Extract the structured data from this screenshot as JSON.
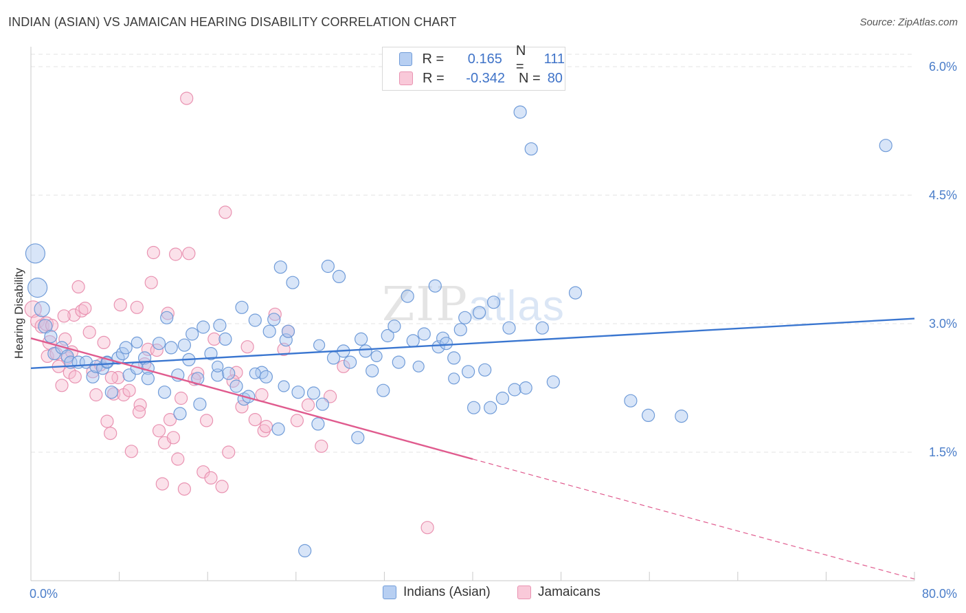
{
  "header": {
    "title": "INDIAN (ASIAN) VS JAMAICAN HEARING DISABILITY CORRELATION CHART",
    "source": "Source: ZipAtlas.com"
  },
  "watermark": {
    "zip": "ZIP",
    "atlas": "atlas"
  },
  "legend_top": {
    "rows": [
      {
        "r_label": "R =",
        "r_value": "0.165",
        "n_label": "N =",
        "n_value": "111"
      },
      {
        "r_label": "R =",
        "r_value": "-0.342",
        "n_label": "N =",
        "n_value": "80"
      }
    ]
  },
  "legend_bottom": {
    "items": [
      {
        "label": "Indians (Asian)"
      },
      {
        "label": "Jamaicans"
      }
    ]
  },
  "colors": {
    "blue_fill": "#a9c6ef",
    "blue_stroke": "#6f9bd8",
    "blue_line": "#3a76d0",
    "pink_fill": "#f6bcd0",
    "pink_stroke": "#e992b1",
    "pink_line": "#e05b8e",
    "grid": "#e3e3e3",
    "tick_text": "#4a7dc9"
  },
  "chart_data": {
    "type": "scatter",
    "title": "INDIAN (ASIAN) VS JAMAICAN HEARING DISABILITY CORRELATION CHART",
    "xlabel": "",
    "ylabel": "Hearing Disability",
    "xlim": [
      0,
      80
    ],
    "ylim": [
      0,
      6.3
    ],
    "x_tick_labels": [
      "0.0%",
      "80.0%"
    ],
    "y_ticks": [
      1.5,
      3.0,
      4.5,
      6.0
    ],
    "y_tick_labels": [
      "1.5%",
      "3.0%",
      "4.5%",
      "6.0%"
    ],
    "grid": "horizontal dashed",
    "legend_position": "top-center",
    "series": [
      {
        "name": "Indians (Asian)",
        "r": 0.165,
        "n": 111,
        "trend": {
          "x": [
            0,
            80
          ],
          "y": [
            2.48,
            3.06
          ]
        },
        "points": [
          [
            0.4,
            3.82,
            14
          ],
          [
            0.6,
            3.42,
            14
          ],
          [
            1.0,
            3.17,
            11
          ],
          [
            1.3,
            2.97,
            10
          ],
          [
            1.8,
            2.85,
            9
          ],
          [
            2.1,
            2.65,
            9
          ],
          [
            2.8,
            2.72,
            9
          ],
          [
            3.3,
            2.62,
            9
          ],
          [
            3.6,
            2.55,
            9
          ],
          [
            4.3,
            2.55,
            9
          ],
          [
            5.0,
            2.55,
            9
          ],
          [
            5.6,
            2.38,
            9
          ],
          [
            5.9,
            2.5,
            9
          ],
          [
            6.5,
            2.48,
            9
          ],
          [
            6.9,
            2.55,
            9
          ],
          [
            7.3,
            2.2,
            9
          ],
          [
            7.9,
            2.6,
            9
          ],
          [
            8.3,
            2.65,
            9
          ],
          [
            8.6,
            2.72,
            9
          ],
          [
            8.9,
            2.4,
            9
          ],
          [
            9.6,
            2.48,
            9
          ],
          [
            10.3,
            2.6,
            9
          ],
          [
            10.6,
            2.48,
            9
          ],
          [
            10.6,
            2.36,
            9
          ],
          [
            11.6,
            2.77,
            9
          ],
          [
            12.1,
            2.2,
            9
          ],
          [
            12.3,
            3.07,
            9
          ],
          [
            12.7,
            2.72,
            9
          ],
          [
            13.3,
            2.4,
            9
          ],
          [
            13.5,
            1.95,
            9
          ],
          [
            13.9,
            2.75,
            9
          ],
          [
            14.3,
            2.58,
            9
          ],
          [
            14.6,
            2.88,
            9
          ],
          [
            15.1,
            2.36,
            9
          ],
          [
            15.3,
            2.06,
            9
          ],
          [
            15.6,
            2.96,
            9
          ],
          [
            16.3,
            2.65,
            9
          ],
          [
            16.9,
            2.4,
            9
          ],
          [
            17.1,
            2.98,
            9
          ],
          [
            17.6,
            2.82,
            9
          ],
          [
            17.9,
            2.42,
            9
          ],
          [
            18.6,
            2.27,
            9
          ],
          [
            19.1,
            3.19,
            9
          ],
          [
            19.3,
            2.12,
            9
          ],
          [
            19.7,
            2.15,
            9
          ],
          [
            20.3,
            3.04,
            9
          ],
          [
            20.9,
            2.43,
            9
          ],
          [
            21.3,
            2.38,
            9
          ],
          [
            21.6,
            2.91,
            9
          ],
          [
            22.0,
            3.05,
            9
          ],
          [
            22.4,
            1.77,
            9
          ],
          [
            22.6,
            3.66,
            9
          ],
          [
            23.1,
            2.81,
            9
          ],
          [
            23.3,
            2.91,
            9
          ],
          [
            23.7,
            3.48,
            9
          ],
          [
            24.2,
            2.2,
            9
          ],
          [
            24.8,
            0.35,
            9
          ],
          [
            25.6,
            2.19,
            9
          ],
          [
            26.0,
            1.83,
            9
          ],
          [
            26.4,
            2.06,
            9
          ],
          [
            26.9,
            3.67,
            9
          ],
          [
            27.4,
            2.6,
            9
          ],
          [
            27.9,
            3.55,
            9
          ],
          [
            28.3,
            2.68,
            9
          ],
          [
            28.9,
            2.55,
            9
          ],
          [
            29.6,
            1.67,
            9
          ],
          [
            29.9,
            2.82,
            9
          ],
          [
            30.3,
            2.68,
            9
          ],
          [
            30.9,
            2.45,
            9
          ],
          [
            31.9,
            2.22,
            9
          ],
          [
            32.3,
            2.86,
            9
          ],
          [
            32.9,
            2.97,
            9
          ],
          [
            33.3,
            2.55,
            9
          ],
          [
            34.1,
            3.32,
            9
          ],
          [
            34.6,
            2.8,
            9
          ],
          [
            35.6,
            2.88,
            9
          ],
          [
            36.6,
            3.44,
            9
          ],
          [
            36.9,
            2.73,
            9
          ],
          [
            37.3,
            2.83,
            9
          ],
          [
            37.6,
            2.77,
            9
          ],
          [
            38.3,
            2.6,
            9
          ],
          [
            38.9,
            2.93,
            9
          ],
          [
            39.3,
            3.07,
            9
          ],
          [
            39.6,
            2.44,
            9
          ],
          [
            40.1,
            2.02,
            9
          ],
          [
            40.6,
            3.13,
            9
          ],
          [
            41.1,
            2.46,
            9
          ],
          [
            41.6,
            2.02,
            9
          ],
          [
            41.9,
            3.25,
            9
          ],
          [
            42.7,
            2.13,
            9
          ],
          [
            43.3,
            2.95,
            9
          ],
          [
            43.8,
            2.23,
            9
          ],
          [
            44.3,
            5.47,
            9
          ],
          [
            45.3,
            5.04,
            9
          ],
          [
            44.8,
            2.25,
            9
          ],
          [
            46.3,
            2.95,
            9
          ],
          [
            47.3,
            2.32,
            9
          ],
          [
            49.3,
            3.36,
            9
          ],
          [
            54.3,
            2.1,
            9
          ],
          [
            55.9,
            1.93,
            9
          ],
          [
            58.9,
            1.92,
            9
          ],
          [
            77.4,
            5.08,
            9
          ],
          [
            6.9,
            2.55,
            8
          ],
          [
            9.6,
            2.78,
            8
          ],
          [
            16.9,
            2.5,
            8
          ],
          [
            20.3,
            2.42,
            8
          ],
          [
            22.9,
            2.27,
            8
          ],
          [
            26.1,
            2.75,
            8
          ],
          [
            31.3,
            2.62,
            8
          ],
          [
            35.1,
            2.5,
            8
          ],
          [
            38.3,
            2.36,
            8
          ]
        ]
      },
      {
        "name": "Jamaicans",
        "r": -0.342,
        "n": 80,
        "trend": {
          "x": [
            0,
            40
          ],
          "y": [
            2.83,
            1.42
          ]
        },
        "trend_dashed": {
          "x": [
            40,
            80
          ],
          "y": [
            1.42,
            0.02
          ]
        },
        "points": [
          [
            0.2,
            3.17,
            12
          ],
          [
            0.6,
            3.03,
            10
          ],
          [
            1.0,
            2.97,
            10
          ],
          [
            1.4,
            3.0,
            10
          ],
          [
            1.7,
            2.78,
            10
          ],
          [
            1.5,
            2.62,
            9
          ],
          [
            2.3,
            2.65,
            9
          ],
          [
            2.5,
            2.5,
            9
          ],
          [
            2.8,
            2.28,
            9
          ],
          [
            3.1,
            2.82,
            9
          ],
          [
            3.3,
            2.6,
            9
          ],
          [
            3.5,
            2.43,
            9
          ],
          [
            3.7,
            2.67,
            9
          ],
          [
            3.9,
            3.1,
            9
          ],
          [
            4.3,
            3.43,
            9
          ],
          [
            4.6,
            3.15,
            9
          ],
          [
            4.9,
            3.18,
            9
          ],
          [
            5.3,
            2.9,
            9
          ],
          [
            5.6,
            2.44,
            9
          ],
          [
            5.9,
            2.17,
            9
          ],
          [
            6.3,
            2.52,
            9
          ],
          [
            6.6,
            2.78,
            9
          ],
          [
            6.9,
            1.86,
            9
          ],
          [
            7.2,
            1.72,
            9
          ],
          [
            7.5,
            2.18,
            9
          ],
          [
            7.9,
            2.37,
            9
          ],
          [
            8.1,
            3.22,
            9
          ],
          [
            8.4,
            2.17,
            9
          ],
          [
            8.9,
            2.22,
            9
          ],
          [
            9.1,
            1.51,
            9
          ],
          [
            9.6,
            3.19,
            9
          ],
          [
            9.9,
            2.05,
            9
          ],
          [
            10.3,
            2.53,
            9
          ],
          [
            10.6,
            2.7,
            9
          ],
          [
            10.9,
            3.48,
            9
          ],
          [
            11.1,
            3.83,
            9
          ],
          [
            11.4,
            2.69,
            9
          ],
          [
            11.6,
            1.75,
            9
          ],
          [
            11.9,
            1.13,
            9
          ],
          [
            12.1,
            1.61,
            9
          ],
          [
            12.6,
            1.88,
            9
          ],
          [
            12.9,
            1.67,
            9
          ],
          [
            13.1,
            3.81,
            9
          ],
          [
            13.3,
            1.42,
            9
          ],
          [
            13.6,
            2.13,
            9
          ],
          [
            13.9,
            1.07,
            9
          ],
          [
            14.1,
            5.63,
            9
          ],
          [
            14.3,
            3.82,
            9
          ],
          [
            15.1,
            2.42,
            9
          ],
          [
            15.6,
            1.27,
            9
          ],
          [
            15.9,
            1.87,
            9
          ],
          [
            16.3,
            1.2,
            9
          ],
          [
            16.6,
            2.82,
            9
          ],
          [
            17.3,
            1.1,
            9
          ],
          [
            17.6,
            4.3,
            9
          ],
          [
            17.9,
            1.5,
            9
          ],
          [
            18.6,
            2.43,
            9
          ],
          [
            19.1,
            2.03,
            9
          ],
          [
            19.6,
            2.73,
            9
          ],
          [
            20.3,
            1.88,
            9
          ],
          [
            20.9,
            2.17,
            9
          ],
          [
            21.1,
            1.75,
            9
          ],
          [
            21.3,
            1.8,
            9
          ],
          [
            22.1,
            3.11,
            9
          ],
          [
            22.9,
            2.7,
            9
          ],
          [
            23.3,
            2.91,
            9
          ],
          [
            24.1,
            1.87,
            9
          ],
          [
            25.1,
            2.05,
            9
          ],
          [
            26.3,
            1.57,
            9
          ],
          [
            27.1,
            2.15,
            9
          ],
          [
            28.3,
            2.5,
            9
          ],
          [
            35.9,
            0.62,
            9
          ],
          [
            1.9,
            2.98,
            9
          ],
          [
            3.0,
            3.09,
            9
          ],
          [
            4.0,
            2.38,
            9
          ],
          [
            7.3,
            2.37,
            9
          ],
          [
            9.8,
            1.97,
            9
          ],
          [
            12.4,
            3.12,
            9
          ],
          [
            14.8,
            2.35,
            9
          ],
          [
            18.3,
            2.33,
            9
          ]
        ]
      }
    ]
  }
}
